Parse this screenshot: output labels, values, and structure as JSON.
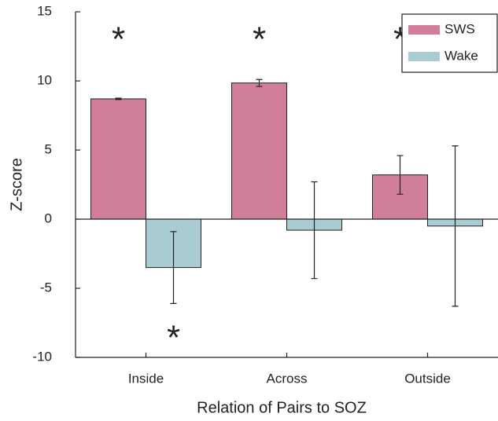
{
  "chart_data": {
    "type": "bar",
    "xlabel": "Relation of Pairs to SOZ",
    "ylabel": "Z-score",
    "categories": [
      "Inside",
      "Across",
      "Outside"
    ],
    "series": [
      {
        "name": "SWS",
        "color": "#d17f98",
        "values": [
          8.7,
          9.85,
          3.2
        ],
        "errors": [
          0.05,
          0.25,
          1.4
        ]
      },
      {
        "name": "Wake",
        "color": "#a9ccd3",
        "values": [
          -3.5,
          -0.8,
          -0.5
        ],
        "errors": [
          2.6,
          3.5,
          5.8
        ]
      }
    ],
    "ylim": [
      -10,
      15
    ],
    "yticks": [
      -10,
      -5,
      0,
      5,
      10,
      15
    ],
    "legend": "upper right",
    "annotations": [
      {
        "text": "*"
      },
      {
        "text": "*"
      },
      {
        "text": "*"
      },
      {
        "text": "*"
      }
    ]
  }
}
